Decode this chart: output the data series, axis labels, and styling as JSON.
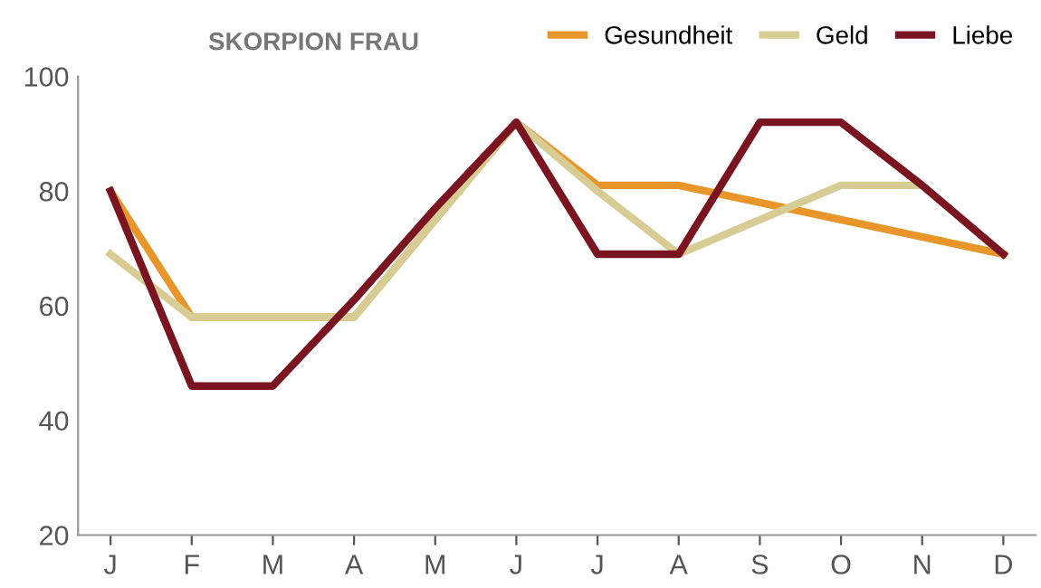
{
  "chart_data": {
    "type": "line",
    "title": "SKORPION FRAU",
    "categories": [
      "J",
      "F",
      "M",
      "A",
      "M",
      "J",
      "J",
      "A",
      "S",
      "O",
      "N",
      "D"
    ],
    "series": [
      {
        "name": "Gesundheit",
        "color": "#e8952a",
        "values": [
          80,
          58,
          58,
          58,
          75,
          92,
          81,
          81,
          78,
          75,
          72,
          69
        ]
      },
      {
        "name": "Geld",
        "color": "#d6cc94",
        "values": [
          69,
          58,
          58,
          58,
          75,
          92,
          80,
          69,
          75,
          81,
          81,
          69
        ]
      },
      {
        "name": "Liebe",
        "color": "#7a1420",
        "values": [
          80,
          46,
          46,
          61,
          77,
          92,
          69,
          69,
          92,
          92,
          81,
          69
        ]
      }
    ],
    "ylim": [
      20,
      100
    ],
    "yticks": [
      20,
      40,
      60,
      80,
      100
    ],
    "grid": false,
    "legend": "top right",
    "marker": "none",
    "line_style": "solid"
  }
}
